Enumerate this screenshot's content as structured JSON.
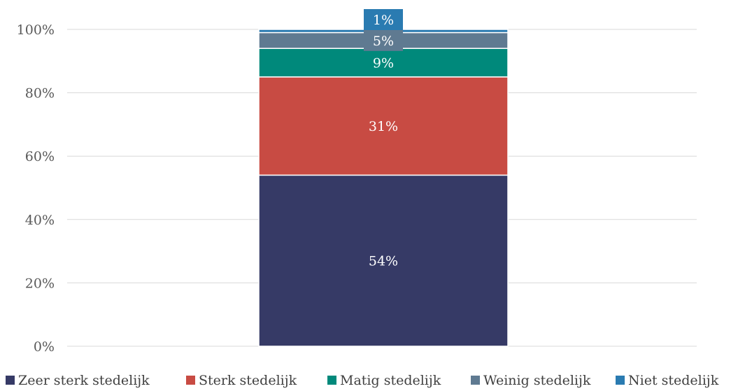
{
  "chart_data": {
    "type": "bar",
    "stacked": true,
    "percent": true,
    "categories": [
      ""
    ],
    "series": [
      {
        "name": "Zeer sterk stedelijk",
        "values": [
          54
        ],
        "label": "54%",
        "color": "#363a66"
      },
      {
        "name": "Sterk stedelijk",
        "values": [
          31
        ],
        "label": "31%",
        "color": "#c84b43"
      },
      {
        "name": "Matig stedelijk",
        "values": [
          9
        ],
        "label": "9%",
        "color": "#00897b"
      },
      {
        "name": "Weinig stedelijk",
        "values": [
          5
        ],
        "label": "5%",
        "color": "#5f7a91"
      },
      {
        "name": "Niet stedelijk",
        "values": [
          1
        ],
        "label": "1%",
        "color": "#2a7bb1"
      }
    ],
    "ylim": [
      0,
      100
    ],
    "yticks": [
      {
        "value": 0,
        "label": "0%"
      },
      {
        "value": 20,
        "label": "20%"
      },
      {
        "value": 40,
        "label": "40%"
      },
      {
        "value": 60,
        "label": "60%"
      },
      {
        "value": 80,
        "label": "80%"
      },
      {
        "value": 100,
        "label": "100%"
      }
    ],
    "title": "",
    "xlabel": "",
    "ylabel": "",
    "grid": true,
    "legend_position": "bottom",
    "gridline_color": "#d9d9d9"
  }
}
